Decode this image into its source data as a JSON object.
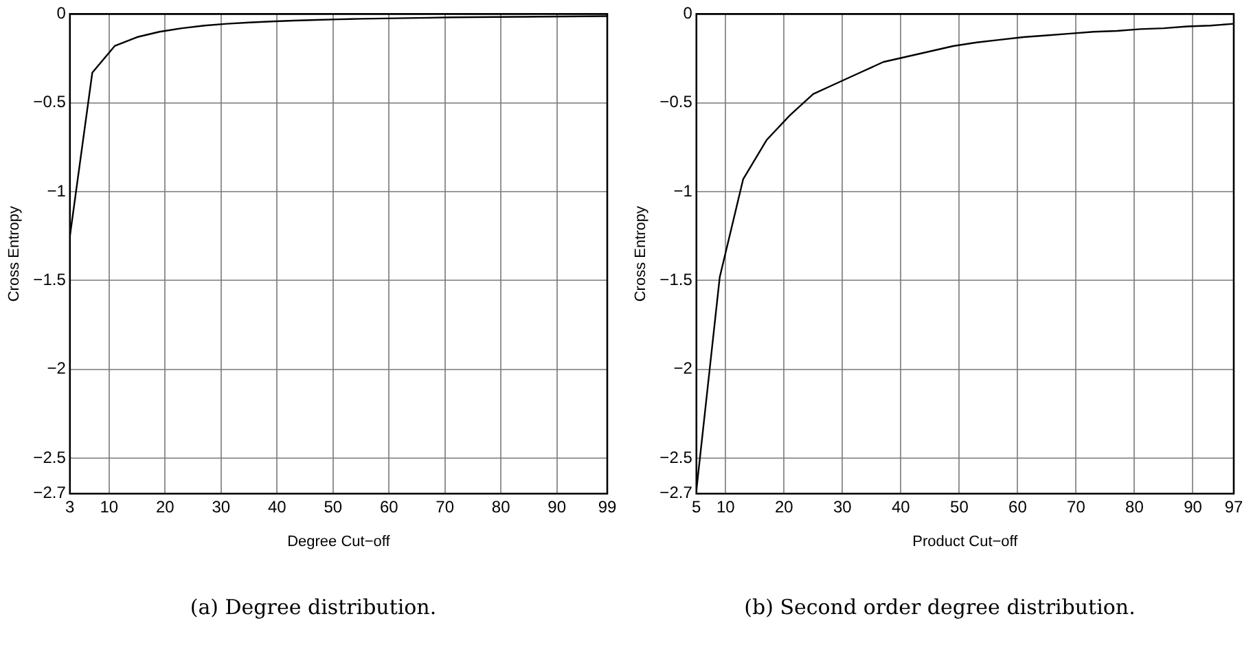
{
  "chart_data": [
    {
      "type": "line",
      "xlabel": "Degree Cut−off",
      "ylabel": "Cross Entropy",
      "annotations": [
        "(a) Degree distribution."
      ],
      "xlim": [
        3,
        99
      ],
      "xticks": [
        3,
        10,
        20,
        30,
        40,
        50,
        60,
        70,
        80,
        90,
        99
      ],
      "ylim": [
        -2.7,
        0
      ],
      "yticks": [
        -2.7,
        -2.5,
        -2,
        -1.5,
        -1,
        -0.5,
        0
      ],
      "grid": true,
      "legend": false,
      "marker": "none",
      "line_style": "solid",
      "series": [
        {
          "color": "#000000",
          "x": [
            3,
            7,
            11,
            15,
            19,
            23,
            27,
            31,
            35,
            39,
            43,
            47,
            51,
            55,
            59,
            63,
            67,
            71,
            75,
            79,
            83,
            87,
            91,
            95,
            99
          ],
          "values": [
            -1.25,
            -0.33,
            -0.18,
            -0.13,
            -0.1,
            -0.08,
            -0.065,
            -0.055,
            -0.048,
            -0.042,
            -0.037,
            -0.033,
            -0.03,
            -0.027,
            -0.025,
            -0.023,
            -0.021,
            -0.019,
            -0.018,
            -0.017,
            -0.016,
            -0.015,
            -0.014,
            -0.013,
            -0.012
          ]
        }
      ]
    },
    {
      "type": "line",
      "xlabel": "Product Cut−off",
      "ylabel": "Cross Entropy",
      "annotations": [
        "(b) Second order degree distribution."
      ],
      "xlim": [
        5,
        97
      ],
      "xticks": [
        5,
        10,
        20,
        30,
        40,
        50,
        60,
        70,
        80,
        90,
        97
      ],
      "ylim": [
        -2.7,
        0
      ],
      "yticks": [
        -2.7,
        -2.5,
        -2,
        -1.5,
        -1,
        -0.5,
        0
      ],
      "grid": true,
      "legend": false,
      "marker": "none",
      "line_style": "solid",
      "series": [
        {
          "color": "#000000",
          "x": [
            5,
            9,
            13,
            17,
            21,
            25,
            29,
            33,
            37,
            41,
            45,
            49,
            53,
            57,
            61,
            65,
            69,
            73,
            77,
            81,
            85,
            89,
            93,
            97
          ],
          "values": [
            -2.68,
            -1.48,
            -0.93,
            -0.71,
            -0.57,
            -0.45,
            -0.39,
            -0.33,
            -0.27,
            -0.24,
            -0.21,
            -0.18,
            -0.16,
            -0.145,
            -0.13,
            -0.12,
            -0.11,
            -0.1,
            -0.095,
            -0.085,
            -0.08,
            -0.07,
            -0.065,
            -0.055
          ]
        }
      ]
    }
  ]
}
